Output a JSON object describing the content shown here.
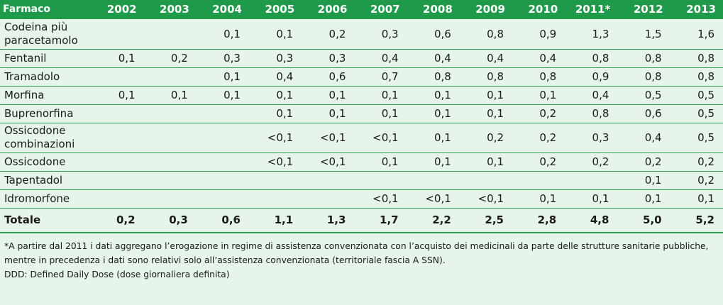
{
  "table": {
    "header": {
      "name": "Farmaco",
      "years": [
        "2002",
        "2003",
        "2004",
        "2005",
        "2006",
        "2007",
        "2008",
        "2009",
        "2010",
        "2011*",
        "2012",
        "2013"
      ]
    },
    "rows": [
      {
        "name": "Codeina più paracetamolo",
        "values": [
          "",
          "",
          "0,1",
          "0,1",
          "0,2",
          "0,3",
          "0,6",
          "0,8",
          "0,9",
          "1,3",
          "1,5",
          "1,6"
        ]
      },
      {
        "name": "Fentanil",
        "values": [
          "0,1",
          "0,2",
          "0,3",
          "0,3",
          "0,3",
          "0,4",
          "0,4",
          "0,4",
          "0,4",
          "0,8",
          "0,8",
          "0,8"
        ]
      },
      {
        "name": "Tramadolo",
        "values": [
          "",
          "",
          "0,1",
          "0,4",
          "0,6",
          "0,7",
          "0,8",
          "0,8",
          "0,8",
          "0,9",
          "0,8",
          "0,8"
        ]
      },
      {
        "name": "Morfina",
        "values": [
          "0,1",
          "0,1",
          "0,1",
          "0,1",
          "0,1",
          "0,1",
          "0,1",
          "0,1",
          "0,1",
          "0,4",
          "0,5",
          "0,5"
        ]
      },
      {
        "name": "Buprenorfina",
        "values": [
          "",
          "",
          "",
          "0,1",
          "0,1",
          "0,1",
          "0,1",
          "0,1",
          "0,2",
          "0,8",
          "0,6",
          "0,5"
        ]
      },
      {
        "name": "Ossicodone combinazioni",
        "values": [
          "",
          "",
          "",
          "<0,1",
          "<0,1",
          "<0,1",
          "0,1",
          "0,2",
          "0,2",
          "0,3",
          "0,4",
          "0,5"
        ]
      },
      {
        "name": "Ossicodone",
        "values": [
          "",
          "",
          "",
          "<0,1",
          "<0,1",
          "0,1",
          "0,1",
          "0,1",
          "0,2",
          "0,2",
          "0,2",
          "0,2"
        ]
      },
      {
        "name": "Tapentadol",
        "values": [
          "",
          "",
          "",
          "",
          "",
          "",
          "",
          "",
          "",
          "",
          "0,1",
          "0,2"
        ]
      },
      {
        "name": "Idromorfone",
        "values": [
          "",
          "",
          "",
          "",
          "",
          "<0,1",
          "<0,1",
          "<0,1",
          "0,1",
          "0,1",
          "0,1",
          "0,1"
        ]
      }
    ],
    "total": {
      "name": "Totale",
      "values": [
        "0,2",
        "0,3",
        "0,6",
        "1,1",
        "1,3",
        "1,7",
        "2,2",
        "2,5",
        "2,8",
        "4,8",
        "5,0",
        "5,2"
      ]
    }
  },
  "notes": {
    "footnote": "*A partire dal 2011 i dati aggregano l’erogazione in regime di assistenza convenzionata con l’acquisto dei medicinali da parte delle strutture sanitarie pubbliche, mentre in precedenza i dati sono relativi solo all’assistenza convenzionata (territoriale fascia A SSN).",
    "ddd": "DDD: Defined Daily Dose (dose giornaliera definita)"
  }
}
